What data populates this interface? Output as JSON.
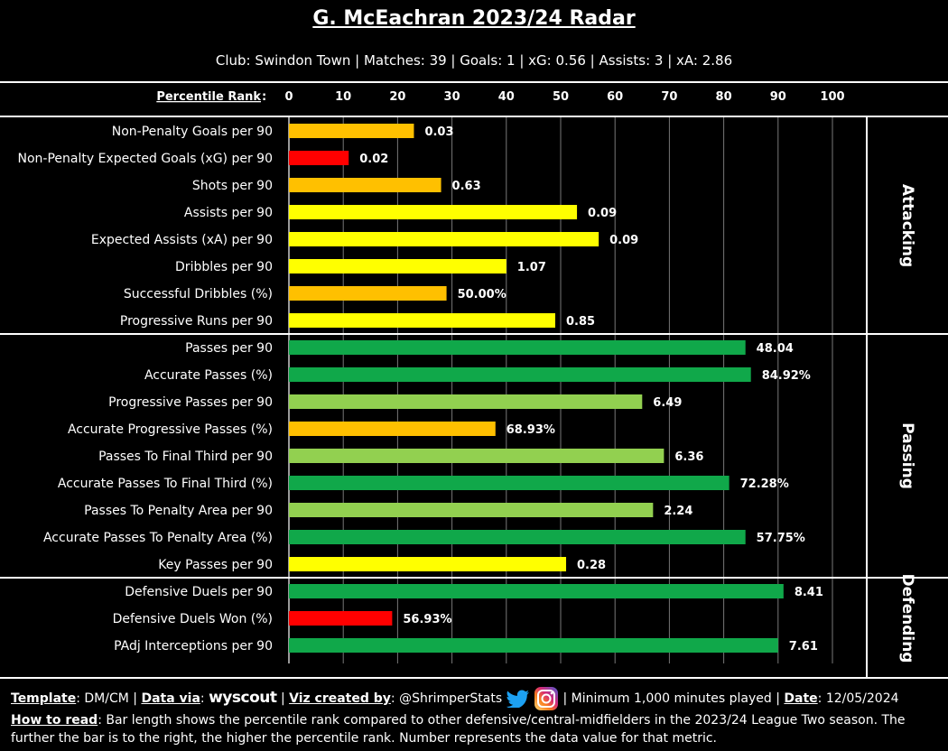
{
  "title": "G. McEachran 2023/24 Radar",
  "subtitle": "Club: Swindon Town | Matches: 39 | Goals: 1 | xG: 0.56 | Assists: 3 | xA: 2.86",
  "colors": {
    "dark_green": "#10a84a",
    "light_green": "#92d050",
    "yellow": "#ffff00",
    "orange": "#ffc000",
    "red": "#ff0000"
  },
  "chart_data": {
    "type": "bar",
    "orientation": "horizontal",
    "axis_label": "Percentile Rank",
    "ticks": [
      0,
      10,
      20,
      30,
      40,
      50,
      60,
      70,
      80,
      90,
      100
    ],
    "xlim": [
      0,
      100
    ],
    "groups": [
      {
        "name": "Attacking",
        "metrics": [
          {
            "label": "Non-Penalty Goals per 90",
            "percentile": 23,
            "value": "0.03",
            "color": "orange"
          },
          {
            "label": "Non-Penalty Expected Goals (xG) per 90",
            "percentile": 11,
            "value": "0.02",
            "color": "red"
          },
          {
            "label": "Shots per 90",
            "percentile": 28,
            "value": "0.63",
            "color": "orange"
          },
          {
            "label": "Assists per 90",
            "percentile": 53,
            "value": "0.09",
            "color": "yellow"
          },
          {
            "label": "Expected Assists (xA) per 90",
            "percentile": 57,
            "value": "0.09",
            "color": "yellow"
          },
          {
            "label": "Dribbles per 90",
            "percentile": 40,
            "value": "1.07",
            "color": "yellow"
          },
          {
            "label": "Successful Dribbles (%)",
            "percentile": 29,
            "value": "50.00%",
            "color": "orange"
          },
          {
            "label": "Progressive Runs per 90",
            "percentile": 49,
            "value": "0.85",
            "color": "yellow"
          }
        ]
      },
      {
        "name": "Passing",
        "metrics": [
          {
            "label": "Passes per 90",
            "percentile": 84,
            "value": "48.04",
            "color": "dark_green"
          },
          {
            "label": "Accurate Passes (%)",
            "percentile": 85,
            "value": "84.92%",
            "color": "dark_green"
          },
          {
            "label": "Progressive Passes per 90",
            "percentile": 65,
            "value": "6.49",
            "color": "light_green"
          },
          {
            "label": "Accurate Progressive Passes (%)",
            "percentile": 38,
            "value": "68.93%",
            "color": "orange"
          },
          {
            "label": "Passes To Final Third per 90",
            "percentile": 69,
            "value": "6.36",
            "color": "light_green"
          },
          {
            "label": "Accurate Passes To Final Third (%)",
            "percentile": 81,
            "value": "72.28%",
            "color": "dark_green"
          },
          {
            "label": "Passes To Penalty Area per 90",
            "percentile": 67,
            "value": "2.24",
            "color": "light_green"
          },
          {
            "label": "Accurate Passes To Penalty Area (%)",
            "percentile": 84,
            "value": "57.75%",
            "color": "dark_green"
          },
          {
            "label": "Key Passes per 90",
            "percentile": 51,
            "value": "0.28",
            "color": "yellow"
          }
        ]
      },
      {
        "name": "Defending",
        "metrics": [
          {
            "label": "Defensive Duels per 90",
            "percentile": 91,
            "value": "8.41",
            "color": "dark_green"
          },
          {
            "label": "Defensive Duels Won (%)",
            "percentile": 19,
            "value": "56.93%",
            "color": "red"
          },
          {
            "label": "PAdj Interceptions per 90",
            "percentile": 90,
            "value": "7.61",
            "color": "dark_green"
          }
        ]
      }
    ]
  },
  "footer": {
    "template_label": "Template",
    "template_value": ": DM/CM |",
    "data_via_label": "Data via",
    "data_via_sep": ":",
    "data_source": "wyscout",
    "viz_sep": "|",
    "viz_label": "Viz created by",
    "viz_value": ": @ShrimperStats",
    "minimum": "| Minimum 1,000 minutes played |",
    "date_label": "Date",
    "date_value": ": 12/05/2024",
    "how_label": "How to read",
    "how_text": ": Bar length shows the percentile rank compared to other defensive/central-midfielders in the 2023/24 League Two season. The further the bar is to the right, the higher the percentile rank. Number represents the data value for that metric."
  }
}
